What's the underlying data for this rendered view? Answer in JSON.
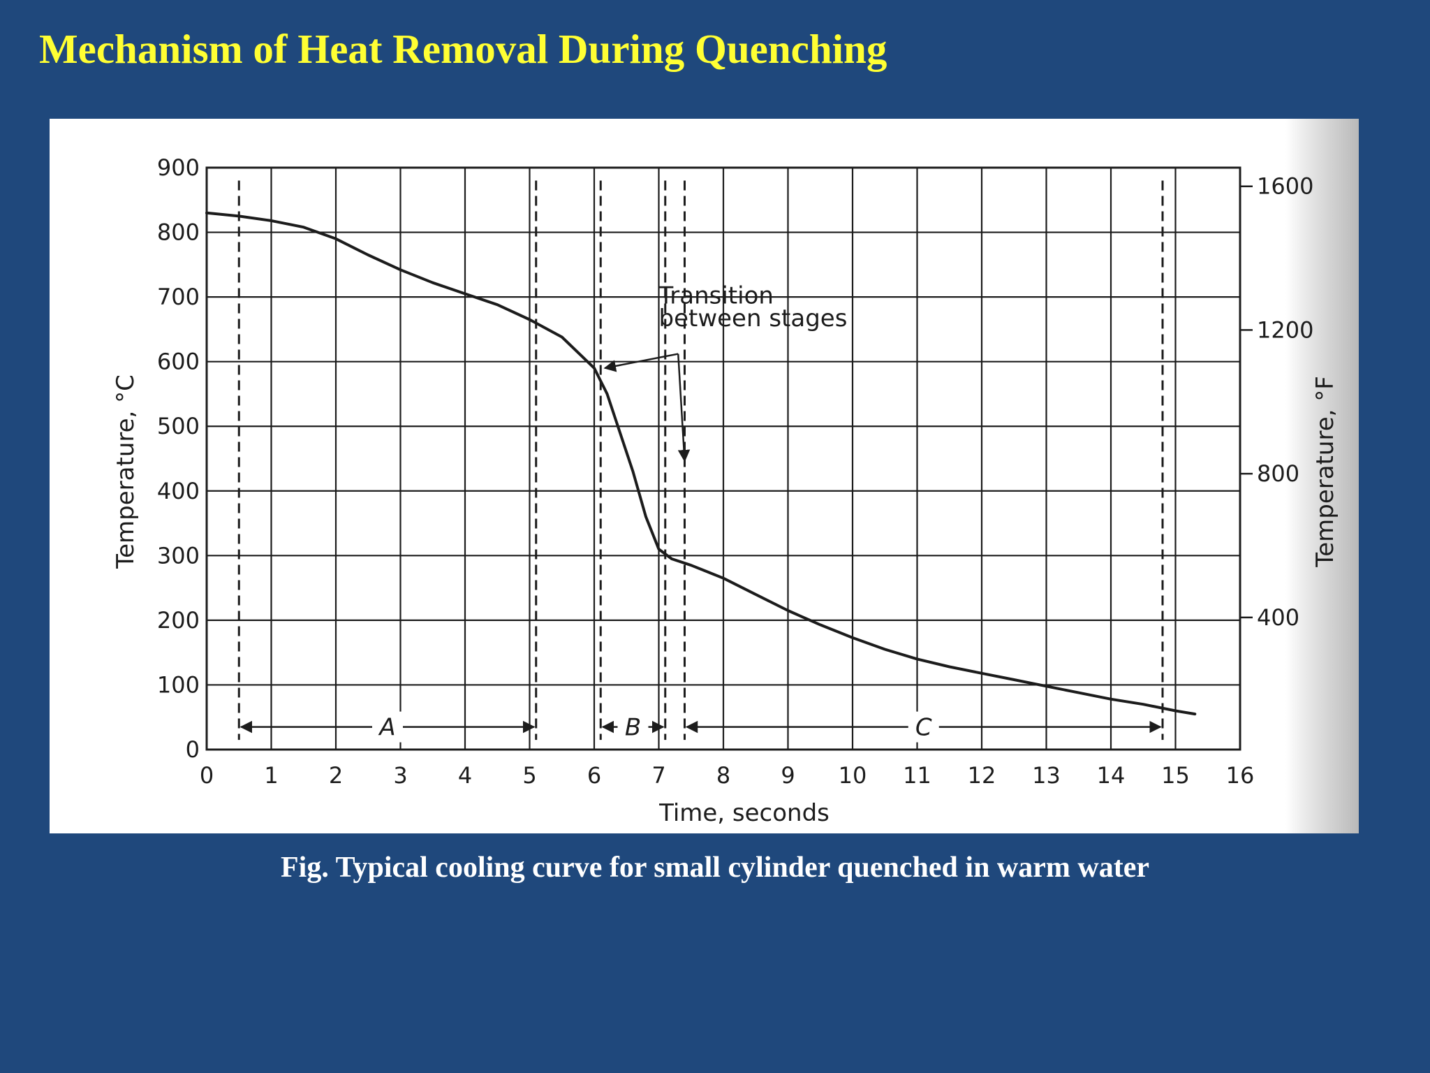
{
  "slide": {
    "title": "Mechanism of Heat Removal During Quenching",
    "caption": "Fig. Typical cooling curve for small cylinder quenched in warm water",
    "colors": {
      "background": "#1f487c",
      "title": "#ffff33",
      "caption": "#ffffff",
      "figure_background": "#ffffff",
      "ink": "#1c1c1c"
    }
  },
  "chart_data": {
    "type": "line",
    "title": "",
    "xlabel": "Time, seconds",
    "ylabel": "Temperature, °C",
    "y2label": "Temperature, °F",
    "xlim": [
      0,
      16
    ],
    "ylim": [
      0,
      900
    ],
    "grid": true,
    "x_ticks": [
      "0",
      "1",
      "2",
      "3",
      "4",
      "5",
      "6",
      "7",
      "8",
      "9",
      "10",
      "11",
      "12",
      "13",
      "14",
      "15",
      "16"
    ],
    "y_ticks": [
      "0",
      "100",
      "200",
      "300",
      "400",
      "500",
      "600",
      "700",
      "800",
      "900"
    ],
    "y2_ticks": [
      {
        "label": "400",
        "celsius": 204.4
      },
      {
        "label": "800",
        "celsius": 426.7
      },
      {
        "label": "1200",
        "celsius": 648.9
      },
      {
        "label": "1600",
        "celsius": 871.1
      }
    ],
    "series": [
      {
        "x": [
          0,
          0.5,
          1,
          1.5,
          2,
          2.5,
          3,
          3.5,
          4,
          4.5,
          5,
          5.5,
          6,
          6.2,
          6.4,
          6.6,
          6.8,
          7,
          7.2,
          7.5,
          8,
          8.5,
          9,
          9.5,
          10,
          10.5,
          11,
          11.5,
          12,
          12.5,
          13,
          13.5,
          14,
          14.5,
          15,
          15.3
        ],
        "y": [
          830,
          825,
          818,
          808,
          790,
          765,
          742,
          722,
          705,
          688,
          665,
          638,
          590,
          550,
          490,
          430,
          360,
          310,
          295,
          285,
          265,
          240,
          215,
          193,
          173,
          155,
          140,
          128,
          118,
          108,
          98,
          88,
          78,
          70,
          60,
          55
        ]
      }
    ],
    "stage_markers": {
      "boundaries": [
        0.5,
        5.1,
        6.1,
        7.1,
        7.4,
        14.8
      ],
      "stages": [
        {
          "label": "A",
          "from": 0.5,
          "to": 5.1
        },
        {
          "label": "B",
          "from": 6.1,
          "to": 7.1
        },
        {
          "label": "C",
          "from": 7.4,
          "to": 14.8
        }
      ]
    },
    "annotations": [
      {
        "text": "Transition",
        "text2": "between stages",
        "points_to": [
          {
            "x": 6.1,
            "y": 590
          },
          {
            "x": 7.4,
            "y": 440
          }
        ]
      }
    ]
  }
}
